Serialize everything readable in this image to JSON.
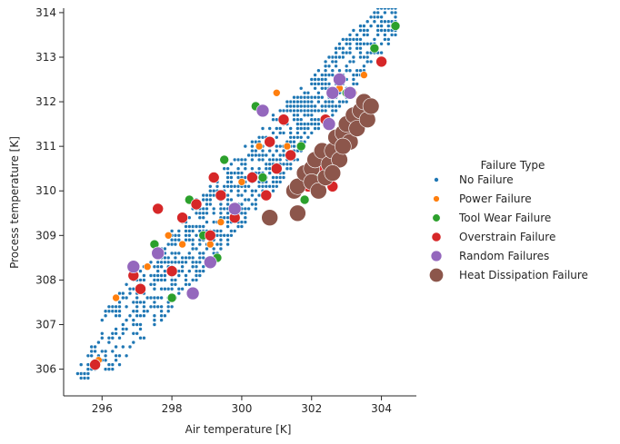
{
  "chart_data": {
    "type": "scatter",
    "xlabel": "Air temperature [K]",
    "ylabel": "Process temperature [K]",
    "xlim": [
      294.9,
      305.0
    ],
    "ylim": [
      305.4,
      314.1
    ],
    "x_ticks": [
      296,
      298,
      300,
      302,
      304
    ],
    "y_ticks": [
      306,
      307,
      308,
      309,
      310,
      311,
      312,
      313,
      314
    ],
    "grid": false,
    "legend": {
      "title": "Failure Type",
      "placement": "right",
      "entries": [
        "No Failure",
        "Power Failure",
        "Tool Wear Failure",
        "Overstrain Failure",
        "Random Failures",
        "Heat Dissipation Failure"
      ]
    },
    "series": [
      {
        "name": "No Failure",
        "color": "#1f77b4",
        "marker_size": 2,
        "regions": [
          {
            "x": [
              295.3,
              296.0
            ],
            "center": [
              295.6,
              306.1
            ],
            "spread": 0.3,
            "n": 40,
            "note": "diagonal band"
          },
          {
            "x": [
              296.0,
              297.5
            ],
            "center": [
              296.7,
              307.5
            ],
            "spread": 0.9,
            "n": 140
          },
          {
            "x": [
              297.5,
              299.8
            ],
            "center": [
              298.6,
              309.4
            ],
            "spread": 1.0,
            "n": 360
          },
          {
            "x": [
              299.8,
              301.6
            ],
            "center": [
              300.7,
              310.8
            ],
            "spread": 0.9,
            "n": 300
          },
          {
            "x": [
              301.6,
              303.3
            ],
            "center": [
              302.4,
              311.6
            ],
            "spread": 0.8,
            "n": 260
          },
          {
            "x": [
              303.3,
              304.4
            ],
            "center": [
              303.8,
              312.9
            ],
            "spread": 0.6,
            "n": 120
          }
        ]
      },
      {
        "name": "Power Failure",
        "color": "#ff7f0e",
        "marker_size": 4,
        "points": [
          [
            295.9,
            306.2
          ],
          [
            296.4,
            307.6
          ],
          [
            297.3,
            308.3
          ],
          [
            297.9,
            309.0
          ],
          [
            298.3,
            308.8
          ],
          [
            299.1,
            308.8
          ],
          [
            299.4,
            309.3
          ],
          [
            300.0,
            310.2
          ],
          [
            300.5,
            311.0
          ],
          [
            301.0,
            312.2
          ],
          [
            301.3,
            311.0
          ],
          [
            302.8,
            312.3
          ],
          [
            303.5,
            312.6
          ],
          [
            304.4,
            313.7
          ],
          [
            303.2,
            312.2
          ]
        ]
      },
      {
        "name": "Tool Wear Failure",
        "color": "#2ca02c",
        "marker_size": 5,
        "points": [
          [
            297.5,
            308.8
          ],
          [
            298.5,
            309.8
          ],
          [
            298.9,
            309.0
          ],
          [
            299.3,
            308.5
          ],
          [
            299.5,
            310.7
          ],
          [
            300.4,
            311.9
          ],
          [
            300.6,
            310.3
          ],
          [
            301.7,
            311.0
          ],
          [
            301.8,
            309.8
          ],
          [
            302.1,
            310.4
          ],
          [
            303.8,
            313.2
          ],
          [
            304.4,
            313.7
          ],
          [
            303.0,
            312.2
          ],
          [
            298.0,
            307.6
          ]
        ]
      },
      {
        "name": "Overstrain Failure",
        "color": "#d62728",
        "marker_size": 6,
        "points": [
          [
            295.8,
            306.1
          ],
          [
            296.9,
            308.1
          ],
          [
            297.1,
            307.8
          ],
          [
            297.6,
            309.6
          ],
          [
            298.0,
            308.2
          ],
          [
            298.3,
            309.4
          ],
          [
            298.7,
            309.7
          ],
          [
            299.1,
            309.0
          ],
          [
            299.2,
            310.3
          ],
          [
            299.4,
            309.9
          ],
          [
            299.8,
            309.4
          ],
          [
            300.3,
            310.3
          ],
          [
            300.7,
            309.9
          ],
          [
            300.8,
            311.1
          ],
          [
            301.2,
            311.6
          ],
          [
            301.4,
            310.8
          ],
          [
            301.9,
            310.1
          ],
          [
            302.2,
            310.5
          ],
          [
            302.4,
            311.6
          ],
          [
            302.6,
            310.1
          ],
          [
            303.1,
            311.3
          ],
          [
            303.4,
            311.9
          ],
          [
            304.0,
            312.9
          ],
          [
            301.0,
            310.5
          ]
        ]
      },
      {
        "name": "Random Failures",
        "color": "#9467bd",
        "marker_size": 7,
        "points": [
          [
            296.9,
            308.3
          ],
          [
            297.6,
            308.6
          ],
          [
            298.6,
            307.7
          ],
          [
            299.1,
            308.4
          ],
          [
            299.8,
            309.6
          ],
          [
            300.6,
            311.8
          ],
          [
            302.6,
            312.2
          ],
          [
            302.8,
            312.5
          ],
          [
            302.5,
            311.5
          ],
          [
            303.1,
            312.2
          ]
        ]
      },
      {
        "name": "Heat Dissipation Failure",
        "color": "#8c564b",
        "marker_size": 9,
        "points": [
          [
            300.8,
            309.4
          ],
          [
            301.5,
            310.0
          ],
          [
            301.6,
            309.5
          ],
          [
            301.6,
            310.1
          ],
          [
            301.8,
            310.4
          ],
          [
            302.0,
            310.5
          ],
          [
            302.0,
            310.2
          ],
          [
            302.1,
            310.7
          ],
          [
            302.2,
            310.0
          ],
          [
            302.3,
            310.9
          ],
          [
            302.4,
            310.3
          ],
          [
            302.5,
            310.6
          ],
          [
            302.6,
            310.9
          ],
          [
            302.7,
            311.2
          ],
          [
            302.8,
            310.7
          ],
          [
            302.9,
            311.3
          ],
          [
            303.0,
            311.5
          ],
          [
            303.1,
            311.1
          ],
          [
            303.2,
            311.7
          ],
          [
            303.3,
            311.4
          ],
          [
            303.4,
            311.8
          ],
          [
            303.5,
            312.0
          ],
          [
            303.6,
            311.6
          ],
          [
            303.7,
            311.9
          ],
          [
            302.6,
            310.4
          ],
          [
            302.9,
            311.0
          ]
        ]
      }
    ]
  }
}
